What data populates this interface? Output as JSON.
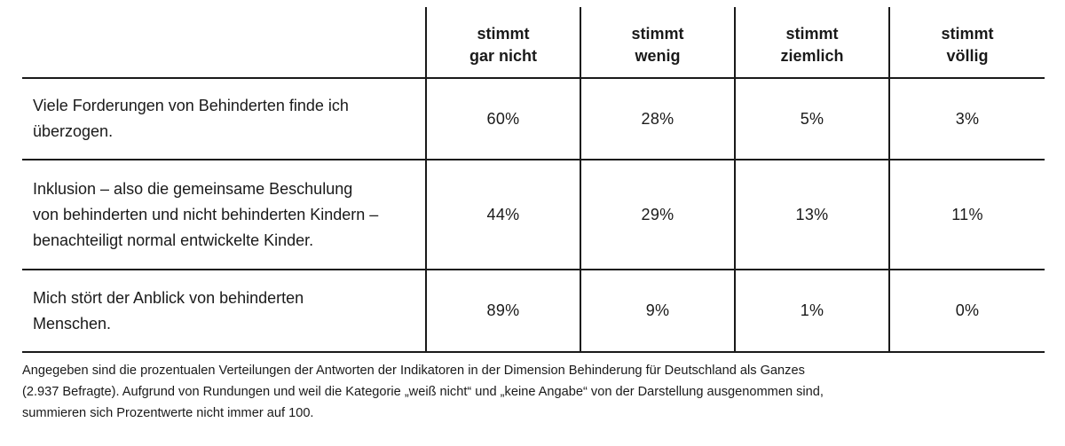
{
  "table": {
    "columns": [
      {
        "line1": "stimmt",
        "line2": "gar nicht"
      },
      {
        "line1": "stimmt",
        "line2": "wenig"
      },
      {
        "line1": "stimmt",
        "line2": "ziemlich"
      },
      {
        "line1": "stimmt",
        "line2": "völlig"
      }
    ],
    "rows": [
      {
        "label_lines": [
          "Viele Forderungen von Behinderten finde ich",
          "überzogen."
        ],
        "values": [
          "60%",
          "28%",
          "5%",
          "3%"
        ]
      },
      {
        "label_lines": [
          "Inklusion – also die gemeinsame Beschulung",
          "von behinderten und nicht behinderten Kindern –",
          "benachteiligt normal entwickelte Kinder."
        ],
        "values": [
          "44%",
          "29%",
          "13%",
          "11%"
        ]
      },
      {
        "label_lines": [
          "Mich stört der Anblick von behinderten",
          "Menschen."
        ],
        "values": [
          "89%",
          "9%",
          "1%",
          "0%"
        ]
      }
    ]
  },
  "footnote": {
    "lines": [
      "Angegeben sind die prozentualen Verteilungen der Antworten der Indikatoren in der Dimension Behinderung für Deutschland als Ganzes",
      "(2.937 Befragte). Aufgrund von Rundungen und weil die Kategorie „weiß nicht“ und „keine Angabe“ von der Darstellung ausgenommen sind,",
      "summieren sich Prozentwerte nicht immer auf 100."
    ]
  }
}
